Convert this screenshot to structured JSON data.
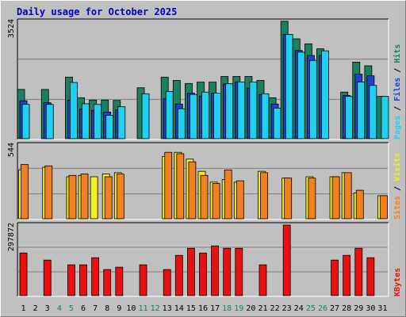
{
  "title": "Daily usage for October 2025",
  "colors": {
    "hits": "#1a8060",
    "files": "#2040d0",
    "pages": "#20d0f0",
    "visits": "#f0f020",
    "sites": "#f08020",
    "kbytes": "#e81010",
    "weekend_label": "#208050",
    "weekday_label": "#000000"
  },
  "chart_data": [
    {
      "type": "bar",
      "name_panel": "hits-files-pages",
      "max_label": "3524",
      "ylim": [
        0,
        3524
      ],
      "legend": [
        {
          "text": "Hits",
          "color": "#1a8060"
        },
        {
          "text": "Files",
          "color": "#2040d0"
        },
        {
          "text": "Pages",
          "color": "#20d0f0"
        }
      ],
      "series": [
        {
          "name": "Hits",
          "values": [
            1480,
            0,
            1480,
            0,
            1850,
            1230,
            1160,
            1160,
            1150,
            0,
            1530,
            0,
            1850,
            1750,
            1660,
            1700,
            1700,
            1870,
            1870,
            1870,
            1750,
            1230,
            3530,
            3000,
            2850,
            2700,
            0,
            1400,
            2300,
            2190,
            1270
          ]
        },
        {
          "name": "Files",
          "values": [
            1140,
            0,
            1080,
            0,
            1160,
            890,
            850,
            800,
            870,
            0,
            0,
            0,
            1200,
            1040,
            1370,
            1280,
            1370,
            1650,
            1700,
            1520,
            1330,
            1040,
            3130,
            2650,
            2500,
            2500,
            0,
            1300,
            1940,
            1890,
            0
          ]
        },
        {
          "name": "Pages",
          "values": [
            1030,
            0,
            1030,
            0,
            1690,
            1050,
            1030,
            700,
            960,
            0,
            1350,
            0,
            1420,
            900,
            1330,
            1400,
            1370,
            1650,
            1700,
            1700,
            1350,
            920,
            3130,
            2600,
            2350,
            2640,
            0,
            1270,
            1700,
            1600,
            1270
          ]
        }
      ]
    },
    {
      "type": "bar",
      "name_panel": "visits-sites",
      "max_label": "544",
      "ylim": [
        0,
        544
      ],
      "legend": [
        {
          "text": "Visits",
          "color": "#f0f020"
        },
        {
          "text": "Sites",
          "color": "#f08020"
        }
      ],
      "series": [
        {
          "name": "Visits",
          "values": [
            360,
            0,
            380,
            0,
            310,
            320,
            310,
            330,
            340,
            0,
            0,
            0,
            460,
            490,
            440,
            350,
            270,
            290,
            270,
            0,
            350,
            0,
            300,
            0,
            310,
            0,
            310,
            340,
            190,
            0,
            170
          ]
        },
        {
          "name": "Sites",
          "values": [
            400,
            0,
            390,
            0,
            320,
            330,
            0,
            310,
            330,
            0,
            0,
            0,
            490,
            480,
            420,
            320,
            260,
            360,
            280,
            0,
            340,
            0,
            300,
            0,
            300,
            0,
            310,
            340,
            210,
            0,
            170
          ]
        }
      ]
    },
    {
      "type": "bar",
      "name_panel": "kbytes",
      "max_label": "297872",
      "ylim": [
        0,
        297872
      ],
      "legend": [
        {
          "text": "KBytes",
          "color": "#e81010"
        }
      ],
      "series": [
        {
          "name": "KBytes",
          "values": [
            180000,
            0,
            150000,
            0,
            130000,
            130000,
            160000,
            110000,
            120000,
            0,
            130000,
            0,
            110000,
            170000,
            200000,
            180000,
            210000,
            200000,
            200000,
            0,
            130000,
            0,
            297872,
            0,
            0,
            0,
            150000,
            170000,
            200000,
            160000,
            0
          ]
        }
      ]
    }
  ],
  "days": [
    "1",
    "2",
    "3",
    "4",
    "5",
    "6",
    "7",
    "8",
    "9",
    "10",
    "11",
    "12",
    "13",
    "14",
    "15",
    "16",
    "17",
    "18",
    "19",
    "20",
    "21",
    "22",
    "23",
    "24",
    "25",
    "26",
    "27",
    "28",
    "29",
    "30",
    "31"
  ],
  "weekend_days": [
    4,
    5,
    11,
    12,
    18,
    19,
    25,
    26
  ]
}
